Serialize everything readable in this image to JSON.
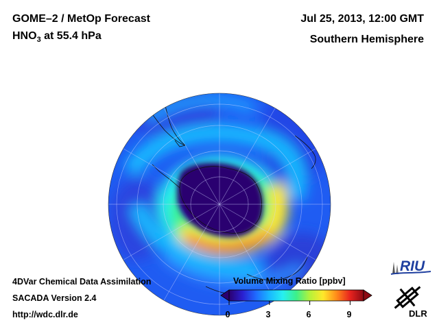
{
  "header": {
    "title_line1": "GOME–2 / MetOp Forecast",
    "title_line2_prefix": "HNO",
    "title_line2_sub": "3",
    "title_line2_suffix": " at 55.4 hPa",
    "date": "Jul 25, 2013, 12:00 GMT",
    "region": "Southern Hemisphere"
  },
  "footer": {
    "line1": "4DVar Chemical Data Assimilation",
    "line2": "SACADA Version 2.4",
    "line3": "http://wdc.dlr.de"
  },
  "colorbar": {
    "title": "Volume Mixing Ratio [ppbv]",
    "ticks": [
      "0",
      "3",
      "6",
      "9"
    ],
    "min": 0,
    "max": 10,
    "colors": [
      "#2b0070",
      "#2a1fd0",
      "#1f6bff",
      "#19b8ff",
      "#27f0f0",
      "#3cf08a",
      "#b5f23a",
      "#ffe82a",
      "#ff8a1a",
      "#e8231e",
      "#8c0a14"
    ]
  },
  "logos": {
    "riu": "RIU",
    "dlr": "DLR"
  },
  "map": {
    "projection": "orthographic, south polar",
    "variable": "HNO3 volume mixing ratio",
    "features": [
      "polar vortex minimum (< 1 ppbv) over Antarctica",
      "collar maximum (~9 ppbv) south of Australia",
      "background ~3-4 ppbv over mid-latitudes"
    ]
  }
}
